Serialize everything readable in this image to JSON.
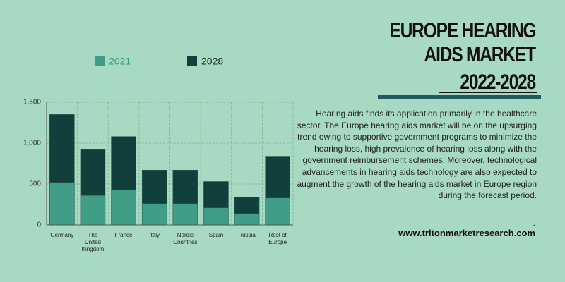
{
  "header": {
    "title_line1": "EUROPE HEARING",
    "title_line2": "AIDS MARKET",
    "title_years": "2022-2028"
  },
  "chart_data": {
    "type": "bar",
    "stacked": true,
    "categories": [
      "Germany",
      "The\nUnited\nKingdom",
      "France",
      "Italy",
      "Nordic\nCountries",
      "Spain",
      "Russia",
      "Rest of\nEurope"
    ],
    "series": [
      {
        "name": "2021",
        "color": "#419c88",
        "values": [
          520,
          360,
          430,
          260,
          260,
          210,
          140,
          330
        ]
      },
      {
        "name": "2028",
        "color": "#0f403b",
        "values": [
          830,
          560,
          650,
          410,
          410,
          320,
          200,
          510
        ]
      }
    ],
    "ylim": [
      0,
      1500
    ],
    "yticks": [
      0,
      500,
      {
        "value": 1000,
        "label": "1,000"
      },
      {
        "value": 1500,
        "label": "1,500"
      }
    ],
    "grid": true,
    "legend": "top"
  },
  "description": "Hearing aids finds its application primarily in the healthcare sector. The Europe hearing aids market will be on the upsurging trend owing to supportive government programs to minimize the hearing loss, high prevalence of hearing loss along with the government reimbursement schemes. Moreover, technological advancements in hearing aids technology are also expected to augment the growth of the hearing aids market in Europe region during the forecast period.",
  "separator": ".",
  "url": "www.tritonmarketresearch.com"
}
